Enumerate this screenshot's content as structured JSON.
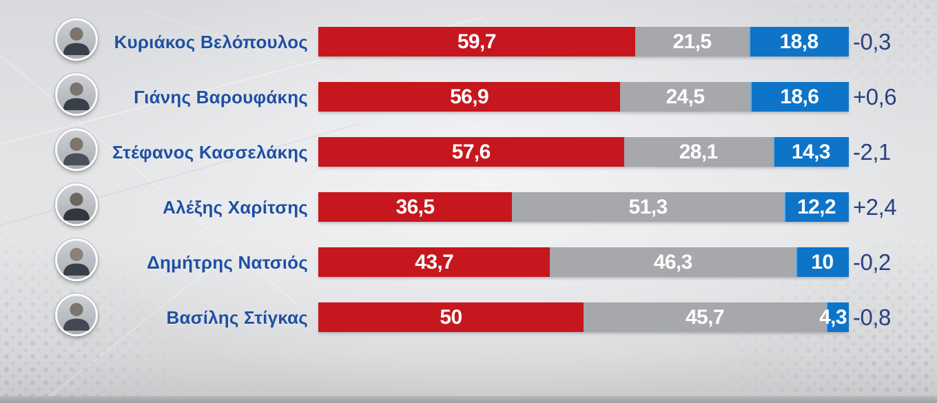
{
  "chart_data": {
    "type": "bar",
    "orientation": "horizontal",
    "stacked": true,
    "unit": "percent",
    "value_range": [
      0,
      100
    ],
    "grid": false,
    "legend": false,
    "colors": {
      "segments": [
        "#c6171e",
        "#a6a8ab",
        "#0e74c8"
      ],
      "value_text": "#ffffff",
      "name_text": "#1e4fa3",
      "change_text": "#2a4080"
    },
    "rows": [
      {
        "name": "Κυριάκος Βελόπουλος",
        "segments": [
          {
            "value": 59.7,
            "label": "59,7"
          },
          {
            "value": 21.5,
            "label": "21,5"
          },
          {
            "value": 18.8,
            "label": "18,8"
          }
        ],
        "change": "-0,3"
      },
      {
        "name": "Γιάνης Βαρουφάκης",
        "segments": [
          {
            "value": 56.9,
            "label": "56,9"
          },
          {
            "value": 24.5,
            "label": "24,5"
          },
          {
            "value": 18.6,
            "label": "18,6"
          }
        ],
        "change": "+0,6"
      },
      {
        "name": "Στέφανος Κασσελάκης",
        "segments": [
          {
            "value": 57.6,
            "label": "57,6"
          },
          {
            "value": 28.1,
            "label": "28,1"
          },
          {
            "value": 14.3,
            "label": "14,3"
          }
        ],
        "change": "-2,1"
      },
      {
        "name": "Αλέξης Χαρίτσης",
        "segments": [
          {
            "value": 36.5,
            "label": "36,5"
          },
          {
            "value": 51.3,
            "label": "51,3"
          },
          {
            "value": 12.2,
            "label": "12,2"
          }
        ],
        "change": "+2,4"
      },
      {
        "name": "Δημήτρης Νατσιός",
        "segments": [
          {
            "value": 43.7,
            "label": "43,7"
          },
          {
            "value": 46.3,
            "label": "46,3"
          },
          {
            "value": 10,
            "label": "10"
          }
        ],
        "change": "-0,2"
      },
      {
        "name": "Βασίλης Στίγκας",
        "segments": [
          {
            "value": 50,
            "label": "50"
          },
          {
            "value": 45.7,
            "label": "45,7"
          },
          {
            "value": 4.3,
            "label": "4,3"
          }
        ],
        "change": "-0,8"
      }
    ]
  }
}
